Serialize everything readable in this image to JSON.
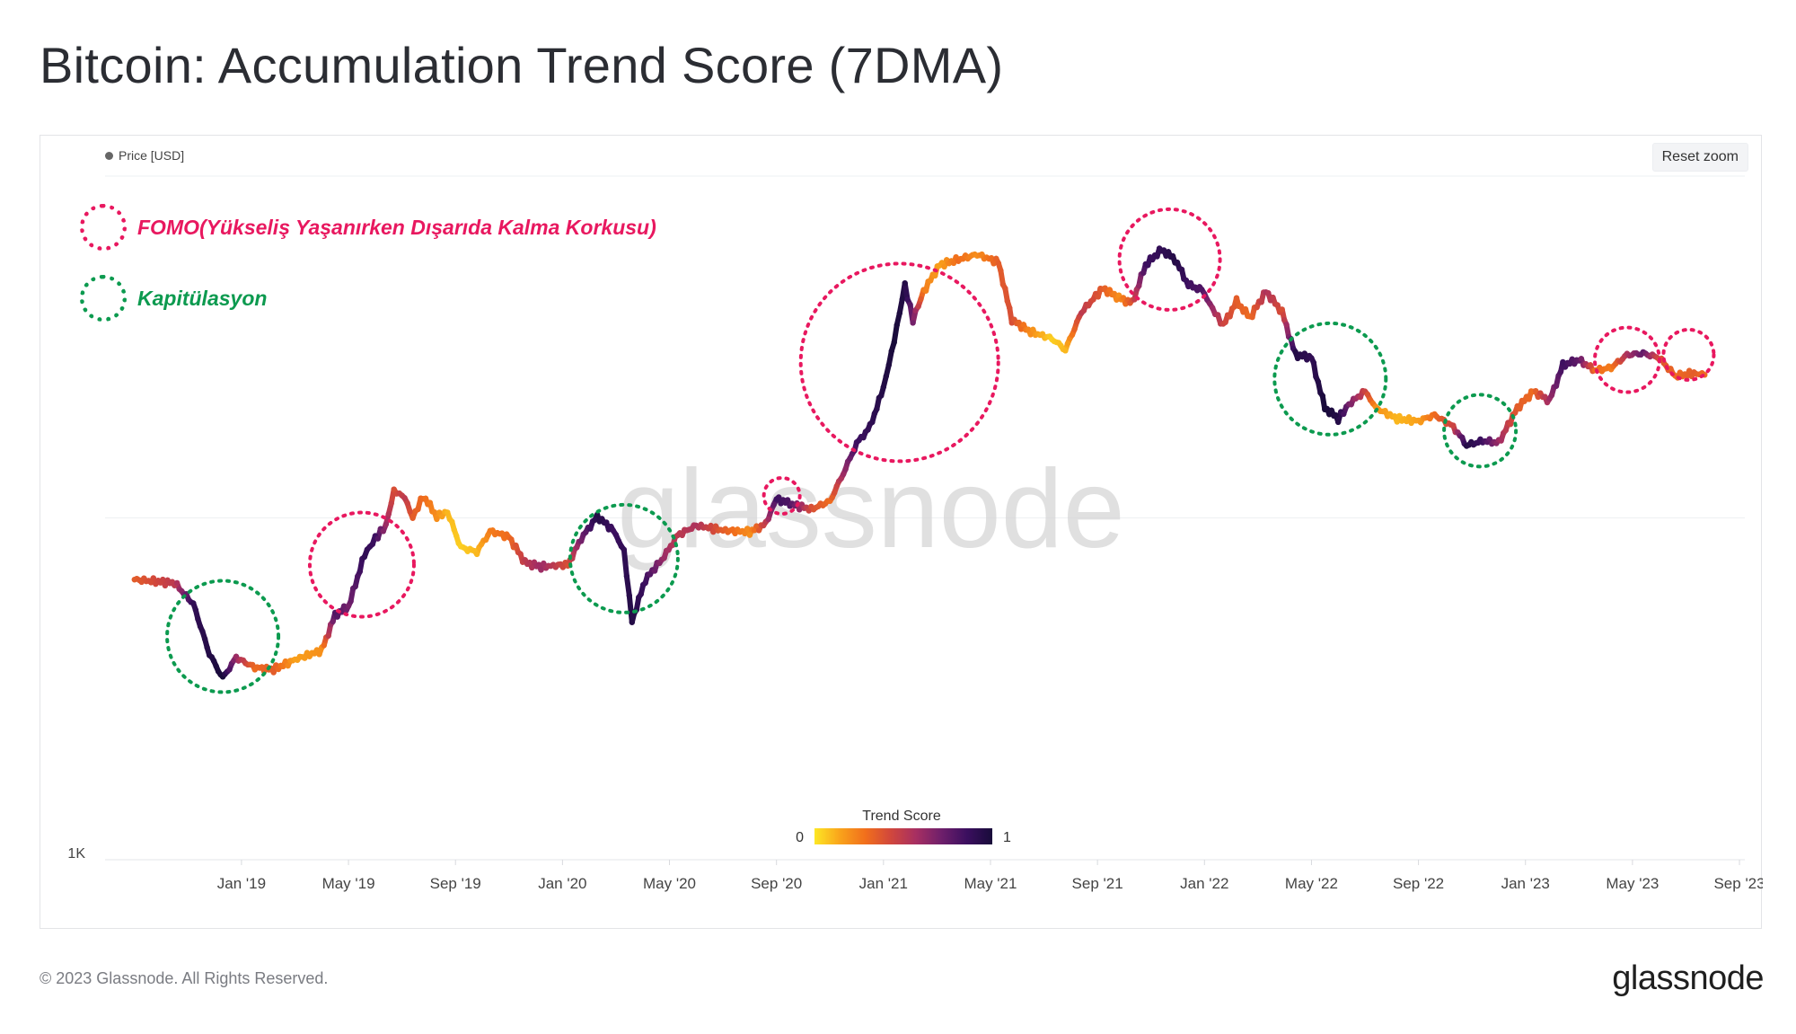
{
  "page": {
    "title": "Bitcoin: Accumulation Trend Score (7DMA)"
  },
  "legend": {
    "series_label": "Price [USD]"
  },
  "controls": {
    "reset_zoom_label": "Reset zoom"
  },
  "annotations": {
    "fomo": {
      "label": "FOMO(Yükseliş Yaşanırken Dışarıda Kalma Korkusu)",
      "color": "#e8185f"
    },
    "capitulation": {
      "label": "Kapitülasyon",
      "color": "#0c9a4f"
    }
  },
  "watermark": "glassnode",
  "footer": {
    "copyright": "© 2023 Glassnode. All Rights Reserved.",
    "logo": "glassnode"
  },
  "chart_data": {
    "type": "line",
    "title": "Bitcoin: Accumulation Trend Score (7DMA)",
    "series_name": "Price [USD]",
    "y_scale": "log",
    "ylim": [
      1000,
      100000
    ],
    "xlim": [
      "2018-09",
      "2023-09"
    ],
    "y_tick_labels": [
      {
        "value": 1000,
        "label": "1K"
      }
    ],
    "x_tick_labels": [
      {
        "t": 4,
        "label": "Jan '19"
      },
      {
        "t": 8,
        "label": "May '19"
      },
      {
        "t": 12,
        "label": "Sep '19"
      },
      {
        "t": 16,
        "label": "Jan '20"
      },
      {
        "t": 20,
        "label": "May '20"
      },
      {
        "t": 24,
        "label": "Sep '20"
      },
      {
        "t": 28,
        "label": "Jan '21"
      },
      {
        "t": 32,
        "label": "May '21"
      },
      {
        "t": 36,
        "label": "Sep '21"
      },
      {
        "t": 40,
        "label": "Jan '22"
      },
      {
        "t": 44,
        "label": "May '22"
      },
      {
        "t": 48,
        "label": "Sep '22"
      },
      {
        "t": 52,
        "label": "Jan '23"
      },
      {
        "t": 56,
        "label": "May '23"
      },
      {
        "t": 60,
        "label": "Sep '23"
      }
    ],
    "time_unit_note": "t = months since Sep 2018",
    "price_series": [
      {
        "t": 0,
        "price": 6600,
        "score": 0.35
      },
      {
        "t": 1.5,
        "price": 6450,
        "score": 0.5
      },
      {
        "t": 2.2,
        "price": 5600,
        "score": 0.9
      },
      {
        "t": 2.8,
        "price": 4000,
        "score": 0.95
      },
      {
        "t": 3.3,
        "price": 3400,
        "score": 1.0
      },
      {
        "t": 3.8,
        "price": 3900,
        "score": 0.6
      },
      {
        "t": 4.5,
        "price": 3650,
        "score": 0.3
      },
      {
        "t": 5.2,
        "price": 3600,
        "score": 0.35
      },
      {
        "t": 6.0,
        "price": 3850,
        "score": 0.15
      },
      {
        "t": 7.0,
        "price": 4100,
        "score": 0.2
      },
      {
        "t": 7.5,
        "price": 5200,
        "score": 0.8
      },
      {
        "t": 8.0,
        "price": 5500,
        "score": 0.7
      },
      {
        "t": 8.6,
        "price": 7800,
        "score": 0.9
      },
      {
        "t": 9.0,
        "price": 8700,
        "score": 0.85
      },
      {
        "t": 9.4,
        "price": 9500,
        "score": 0.6
      },
      {
        "t": 9.7,
        "price": 12000,
        "score": 0.4
      },
      {
        "t": 10.1,
        "price": 11500,
        "score": 0.5
      },
      {
        "t": 10.4,
        "price": 10000,
        "score": 0.35
      },
      {
        "t": 10.8,
        "price": 11600,
        "score": 0.3
      },
      {
        "t": 11.3,
        "price": 10100,
        "score": 0.2
      },
      {
        "t": 11.7,
        "price": 10400,
        "score": 0.1
      },
      {
        "t": 12.2,
        "price": 8200,
        "score": 0.05
      },
      {
        "t": 12.8,
        "price": 7950,
        "score": 0.1
      },
      {
        "t": 13.3,
        "price": 9150,
        "score": 0.25
      },
      {
        "t": 14.0,
        "price": 8800,
        "score": 0.3
      },
      {
        "t": 14.6,
        "price": 7400,
        "score": 0.5
      },
      {
        "t": 15.2,
        "price": 7200,
        "score": 0.6
      },
      {
        "t": 16.2,
        "price": 7300,
        "score": 0.4
      },
      {
        "t": 16.7,
        "price": 8700,
        "score": 0.7
      },
      {
        "t": 17.3,
        "price": 10100,
        "score": 0.95
      },
      {
        "t": 17.9,
        "price": 9200,
        "score": 0.85
      },
      {
        "t": 18.3,
        "price": 8000,
        "score": 0.9
      },
      {
        "t": 18.6,
        "price": 5000,
        "score": 0.95
      },
      {
        "t": 19.1,
        "price": 6600,
        "score": 0.85
      },
      {
        "t": 19.8,
        "price": 7700,
        "score": 0.6
      },
      {
        "t": 20.3,
        "price": 8900,
        "score": 0.5
      },
      {
        "t": 21.0,
        "price": 9500,
        "score": 0.55
      },
      {
        "t": 22.0,
        "price": 9200,
        "score": 0.35
      },
      {
        "t": 23.0,
        "price": 9100,
        "score": 0.2
      },
      {
        "t": 23.6,
        "price": 9600,
        "score": 0.5
      },
      {
        "t": 24.0,
        "price": 11400,
        "score": 0.85
      },
      {
        "t": 24.5,
        "price": 11000,
        "score": 0.8
      },
      {
        "t": 25.3,
        "price": 10600,
        "score": 0.4
      },
      {
        "t": 26.0,
        "price": 11200,
        "score": 0.3
      },
      {
        "t": 26.5,
        "price": 13500,
        "score": 0.6
      },
      {
        "t": 27.0,
        "price": 16500,
        "score": 0.85
      },
      {
        "t": 27.5,
        "price": 18500,
        "score": 0.9
      },
      {
        "t": 28.0,
        "price": 24000,
        "score": 0.95
      },
      {
        "t": 28.4,
        "price": 33000,
        "score": 1.0
      },
      {
        "t": 28.8,
        "price": 48000,
        "score": 0.95
      },
      {
        "t": 29.1,
        "price": 38000,
        "score": 0.7
      },
      {
        "t": 29.5,
        "price": 46000,
        "score": 0.25
      },
      {
        "t": 30.1,
        "price": 55000,
        "score": 0.15
      },
      {
        "t": 30.8,
        "price": 57000,
        "score": 0.3
      },
      {
        "t": 31.5,
        "price": 59000,
        "score": 0.2
      },
      {
        "t": 32.3,
        "price": 56000,
        "score": 0.35
      },
      {
        "t": 32.8,
        "price": 38000,
        "score": 0.4
      },
      {
        "t": 33.5,
        "price": 35000,
        "score": 0.2
      },
      {
        "t": 34.3,
        "price": 33500,
        "score": 0.05
      },
      {
        "t": 34.8,
        "price": 31000,
        "score": 0.1
      },
      {
        "t": 35.4,
        "price": 40000,
        "score": 0.5
      },
      {
        "t": 36.2,
        "price": 47000,
        "score": 0.35
      },
      {
        "t": 36.8,
        "price": 44000,
        "score": 0.2
      },
      {
        "t": 37.3,
        "price": 42500,
        "score": 0.4
      },
      {
        "t": 37.8,
        "price": 55000,
        "score": 0.85
      },
      {
        "t": 38.4,
        "price": 61000,
        "score": 0.9
      },
      {
        "t": 38.9,
        "price": 57000,
        "score": 0.95
      },
      {
        "t": 39.4,
        "price": 48000,
        "score": 0.85
      },
      {
        "t": 39.9,
        "price": 46500,
        "score": 0.8
      },
      {
        "t": 40.3,
        "price": 41000,
        "score": 0.6
      },
      {
        "t": 40.7,
        "price": 36500,
        "score": 0.45
      },
      {
        "t": 41.2,
        "price": 43000,
        "score": 0.35
      },
      {
        "t": 41.7,
        "price": 38500,
        "score": 0.3
      },
      {
        "t": 42.3,
        "price": 46000,
        "score": 0.55
      },
      {
        "t": 42.9,
        "price": 40000,
        "score": 0.4
      },
      {
        "t": 43.4,
        "price": 30000,
        "score": 0.95
      },
      {
        "t": 44.0,
        "price": 29500,
        "score": 0.9
      },
      {
        "t": 44.5,
        "price": 21000,
        "score": 1.0
      },
      {
        "t": 45.0,
        "price": 19500,
        "score": 0.95
      },
      {
        "t": 45.4,
        "price": 21500,
        "score": 0.7
      },
      {
        "t": 46.0,
        "price": 23500,
        "score": 0.45
      },
      {
        "t": 46.4,
        "price": 21000,
        "score": 0.2
      },
      {
        "t": 47.2,
        "price": 19500,
        "score": 0.1
      },
      {
        "t": 48.0,
        "price": 19200,
        "score": 0.15
      },
      {
        "t": 48.6,
        "price": 20000,
        "score": 0.3
      },
      {
        "t": 49.3,
        "price": 18500,
        "score": 0.45
      },
      {
        "t": 49.8,
        "price": 16300,
        "score": 0.95
      },
      {
        "t": 50.4,
        "price": 16800,
        "score": 0.85
      },
      {
        "t": 51.0,
        "price": 16600,
        "score": 0.6
      },
      {
        "t": 51.7,
        "price": 21000,
        "score": 0.35
      },
      {
        "t": 52.3,
        "price": 23500,
        "score": 0.3
      },
      {
        "t": 52.9,
        "price": 22000,
        "score": 0.6
      },
      {
        "t": 53.4,
        "price": 28000,
        "score": 0.85
      },
      {
        "t": 54.0,
        "price": 29000,
        "score": 0.75
      },
      {
        "t": 54.6,
        "price": 27000,
        "score": 0.3
      },
      {
        "t": 55.2,
        "price": 27500,
        "score": 0.25
      },
      {
        "t": 55.8,
        "price": 30000,
        "score": 0.55
      },
      {
        "t": 56.4,
        "price": 30300,
        "score": 0.75
      },
      {
        "t": 57.0,
        "price": 29400,
        "score": 0.4
      },
      {
        "t": 57.6,
        "price": 26000,
        "score": 0.3
      },
      {
        "t": 58.3,
        "price": 26500,
        "score": 0.35
      },
      {
        "t": 58.7,
        "price": 26200,
        "score": 0.3
      }
    ],
    "color_scale": {
      "title": "Trend Score",
      "min_label": "0",
      "max_label": "1",
      "stops": [
        "#fde725",
        "#f9a31b",
        "#f16f1c",
        "#d1473c",
        "#a72f62",
        "#6e1f6b",
        "#3b0f5f",
        "#180b3a"
      ]
    },
    "fomo_regions": [
      {
        "t": 8.5,
        "price": 7300,
        "label": "FOMO"
      },
      {
        "t": 24.2,
        "price": 11600,
        "label": "FOMO"
      },
      {
        "t": 28.6,
        "price": 28500,
        "label": "FOMO"
      },
      {
        "t": 38.7,
        "price": 57000,
        "label": "FOMO"
      },
      {
        "t": 55.8,
        "price": 29000,
        "label": "FOMO"
      },
      {
        "t": 58.1,
        "price": 30000,
        "label": "FOMO"
      }
    ],
    "capitulation_regions": [
      {
        "t": 3.3,
        "price": 4500,
        "label": "Kapitülasyon"
      },
      {
        "t": 18.3,
        "price": 7600,
        "label": "Kapitülasyon"
      },
      {
        "t": 44.7,
        "price": 25500,
        "label": "Kapitülasyon"
      },
      {
        "t": 50.3,
        "price": 18000,
        "label": "Kapitülasyon"
      }
    ]
  }
}
